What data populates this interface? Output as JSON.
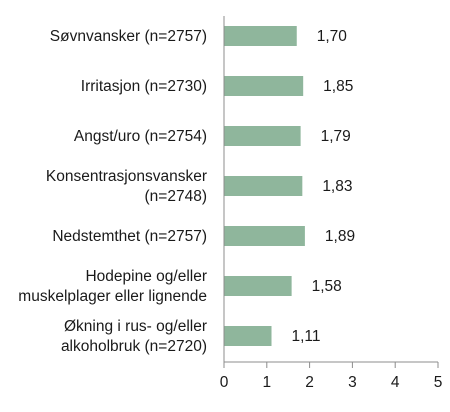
{
  "chart_data": {
    "type": "bar",
    "orientation": "horizontal",
    "categories": [
      [
        "Søvnvansker (n=2757)"
      ],
      [
        "Irritasjon (n=2730)"
      ],
      [
        "Angst/uro (n=2754)"
      ],
      [
        "Konsentrasjonsvansker",
        "(n=2748)"
      ],
      [
        "Nedstemthet (n=2757)"
      ],
      [
        "Hodepine og/eller",
        "muskelplager eller lignende"
      ],
      [
        "Økning i rus- og/eller",
        "alkoholbruk (n=2720)"
      ]
    ],
    "values": [
      1.7,
      1.85,
      1.79,
      1.83,
      1.89,
      1.58,
      1.11
    ],
    "value_labels": [
      "1,70",
      "1,85",
      "1,79",
      "1,83",
      "1,89",
      "1,58",
      "1,11"
    ],
    "xlim": [
      0,
      5
    ],
    "x_ticks": [
      "0",
      "1",
      "2",
      "3",
      "4",
      "5"
    ],
    "bar_color": "#8fb69c",
    "grid": false,
    "title": "",
    "xlabel": "",
    "ylabel": ""
  }
}
